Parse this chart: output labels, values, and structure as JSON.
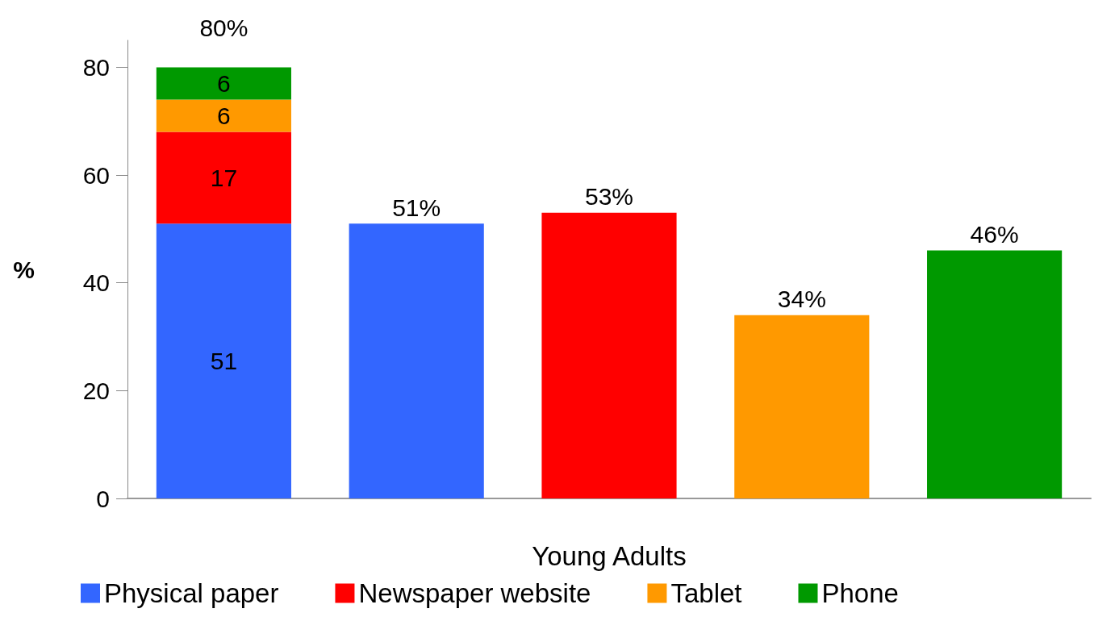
{
  "chart_data": {
    "type": "bar",
    "stacked": true,
    "xlabel": "Young Adults",
    "ylabel": "%",
    "categories": [
      null,
      null,
      null,
      null,
      null
    ],
    "series": [
      {
        "name": "Physical paper",
        "color": "#3366ff",
        "values": [
          51,
          51,
          null,
          null,
          null
        ],
        "value_labels": [
          "51",
          "51%",
          null,
          null,
          null
        ]
      },
      {
        "name": "Newspaper website",
        "color": "#ff0000",
        "values": [
          17,
          null,
          53,
          null,
          null
        ],
        "value_labels": [
          "17",
          null,
          "53%",
          null,
          null
        ]
      },
      {
        "name": "Tablet",
        "color": "#ff9900",
        "values": [
          6,
          null,
          null,
          34,
          null
        ],
        "value_labels": [
          "6",
          null,
          null,
          "34%",
          null
        ]
      },
      {
        "name": "Phone",
        "color": "#009900",
        "values": [
          6,
          null,
          null,
          null,
          46
        ],
        "value_labels": [
          "6",
          null,
          null,
          null,
          "46%"
        ]
      }
    ],
    "totals": [
      "80%",
      null,
      null,
      null,
      null
    ],
    "ylim": [
      0,
      85
    ],
    "yticks": [
      0,
      20,
      40,
      60,
      80
    ],
    "grid": false,
    "legend": "bottom"
  }
}
